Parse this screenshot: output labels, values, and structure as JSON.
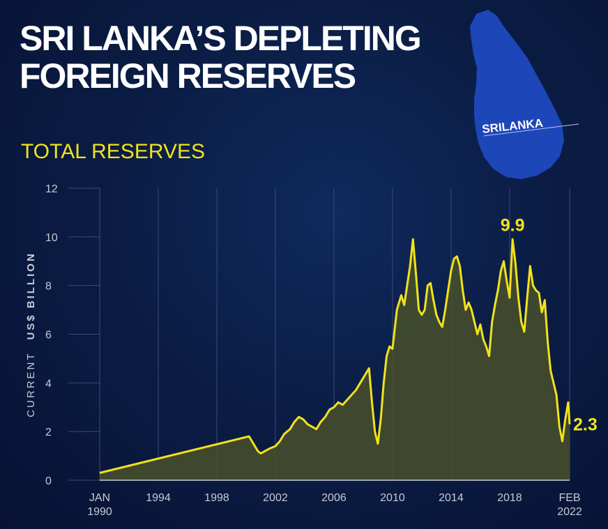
{
  "title": "SRI LANKA’S DEPLETING\nFOREIGN RESERVES",
  "subtitle": "TOTAL RESERVES",
  "map": {
    "label": "SRILANKA"
  },
  "colors": {
    "line": "#f2e21b",
    "fill": "#49502a",
    "grid": "#3a4a78",
    "background": "#0b1d45",
    "map": "#1d46b8"
  },
  "chart_data": {
    "type": "area",
    "ylabel_light": "CURRENT",
    "ylabel_bold": "US$ BILLION",
    "ylim": [
      0,
      12
    ],
    "xlim": [
      1990.0,
      2022.1
    ],
    "yticks": [
      0,
      2,
      4,
      6,
      8,
      10,
      12
    ],
    "xticks": [
      {
        "value": 1990.0,
        "line1": "JAN",
        "line2": "1990"
      },
      {
        "value": 1994,
        "line1": "1994",
        "line2": ""
      },
      {
        "value": 1998,
        "line1": "1998",
        "line2": ""
      },
      {
        "value": 2002,
        "line1": "2002",
        "line2": ""
      },
      {
        "value": 2006,
        "line1": "2006",
        "line2": ""
      },
      {
        "value": 2010,
        "line1": "2010",
        "line2": ""
      },
      {
        "value": 2014,
        "line1": "2014",
        "line2": ""
      },
      {
        "value": 2018,
        "line1": "2018",
        "line2": ""
      },
      {
        "value": 2022.1,
        "line1": "FEB",
        "line2": "2022"
      }
    ],
    "grid": "vertical",
    "series": [
      {
        "x": [
          1990.0,
          2000.2,
          2000.5,
          2000.8,
          2001.0,
          2001.3,
          2001.6,
          2002.0,
          2002.3,
          2002.6,
          2003.0,
          2003.3,
          2003.6,
          2003.9,
          2004.2,
          2004.5,
          2004.8,
          2005.1,
          2005.4,
          2005.7,
          2006.0,
          2006.3,
          2006.6,
          2006.9,
          2007.2,
          2007.5,
          2007.8,
          2008.0,
          2008.2,
          2008.4,
          2008.6,
          2008.8,
          2009.0,
          2009.2,
          2009.4,
          2009.6,
          2009.8,
          2010.0,
          2010.3,
          2010.6,
          2010.8,
          2011.0,
          2011.2,
          2011.4,
          2011.6,
          2011.8,
          2012.0,
          2012.2,
          2012.4,
          2012.6,
          2012.8,
          2013.0,
          2013.2,
          2013.4,
          2013.6,
          2013.8,
          2014.0,
          2014.2,
          2014.4,
          2014.6,
          2014.8,
          2015.0,
          2015.2,
          2015.4,
          2015.6,
          2015.8,
          2016.0,
          2016.2,
          2016.4,
          2016.6,
          2016.8,
          2017.0,
          2017.2,
          2017.4,
          2017.6,
          2017.8,
          2018.0,
          2018.2,
          2018.4,
          2018.6,
          2018.8,
          2019.0,
          2019.2,
          2019.4,
          2019.6,
          2019.8,
          2020.0,
          2020.2,
          2020.4,
          2020.6,
          2020.8,
          2021.0,
          2021.2,
          2021.4,
          2021.6,
          2021.8,
          2022.0,
          2022.1
        ],
        "y": [
          0.3,
          1.8,
          1.5,
          1.2,
          1.1,
          1.2,
          1.3,
          1.4,
          1.6,
          1.9,
          2.1,
          2.4,
          2.6,
          2.5,
          2.3,
          2.2,
          2.1,
          2.4,
          2.6,
          2.9,
          3.0,
          3.2,
          3.1,
          3.3,
          3.5,
          3.7,
          4.0,
          4.2,
          4.4,
          4.6,
          3.2,
          2.0,
          1.5,
          2.5,
          4.0,
          5.1,
          5.5,
          5.4,
          7.0,
          7.6,
          7.2,
          8.0,
          8.8,
          9.9,
          8.5,
          7.0,
          6.8,
          7.0,
          8.0,
          8.1,
          7.4,
          6.8,
          6.5,
          6.3,
          7.0,
          7.8,
          8.6,
          9.1,
          9.2,
          8.8,
          7.8,
          7.0,
          7.3,
          7.0,
          6.5,
          6.0,
          6.4,
          5.8,
          5.5,
          5.1,
          6.5,
          7.2,
          7.8,
          8.6,
          9.0,
          8.2,
          7.5,
          9.9,
          8.9,
          7.5,
          6.5,
          6.1,
          7.5,
          8.8,
          8.0,
          7.8,
          7.7,
          6.9,
          7.4,
          5.7,
          4.5,
          4.0,
          3.5,
          2.2,
          1.6,
          2.5,
          3.2,
          2.3
        ]
      }
    ],
    "annotations": [
      {
        "x": 2018.2,
        "y": 9.9,
        "text": "9.9",
        "anchor": "top"
      },
      {
        "x": 2022.1,
        "y": 2.3,
        "text": "2.3",
        "anchor": "right"
      }
    ]
  }
}
